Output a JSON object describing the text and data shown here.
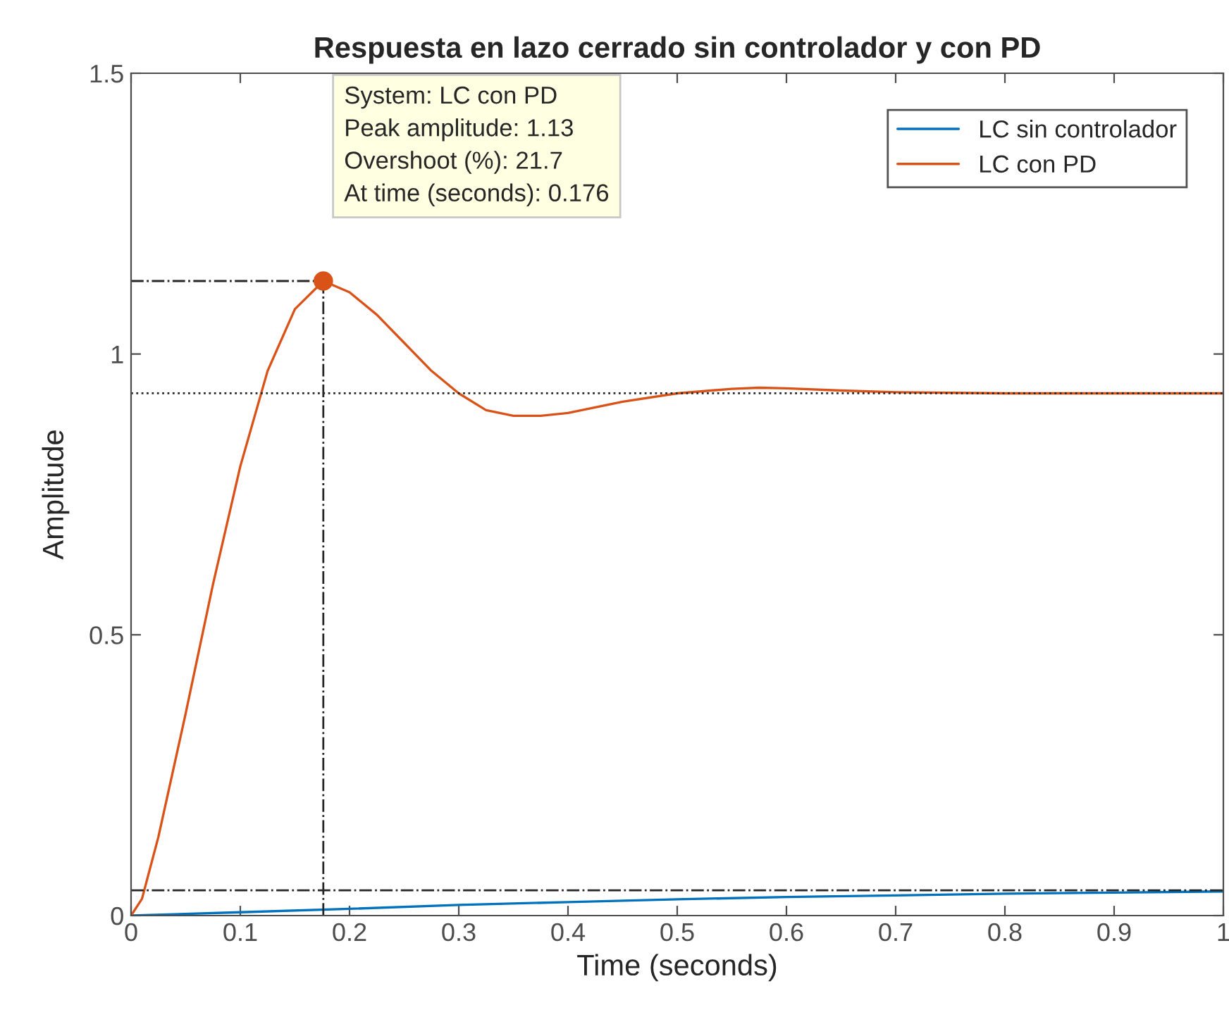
{
  "chart_data": {
    "type": "line",
    "title": "Respuesta en lazo cerrado sin controlador y con PD",
    "xlabel": "Time (seconds)",
    "ylabel": "Amplitude",
    "series": [
      {
        "name": "LC sin controlador",
        "color": "#0072bd",
        "x": [
          0,
          0.1,
          0.2,
          0.3,
          0.4,
          0.5,
          0.6,
          0.7,
          0.8,
          0.9,
          1
        ],
        "values": [
          0,
          0.006,
          0.012,
          0.019,
          0.024,
          0.029,
          0.033,
          0.036,
          0.039,
          0.041,
          0.043
        ]
      },
      {
        "name": "LC con PD",
        "color": "#d95319",
        "x": [
          0,
          0.01,
          0.025,
          0.05,
          0.075,
          0.1,
          0.125,
          0.15,
          0.176,
          0.2,
          0.225,
          0.25,
          0.275,
          0.3,
          0.325,
          0.35,
          0.375,
          0.4,
          0.45,
          0.5,
          0.55,
          0.575,
          0.6,
          0.65,
          0.7,
          0.8,
          0.9,
          1
        ],
        "values": [
          0,
          0.03,
          0.14,
          0.36,
          0.59,
          0.8,
          0.97,
          1.08,
          1.13,
          1.11,
          1.07,
          1.02,
          0.97,
          0.93,
          0.9,
          0.89,
          0.89,
          0.895,
          0.915,
          0.93,
          0.938,
          0.94,
          0.939,
          0.935,
          0.932,
          0.93,
          0.93,
          0.93
        ]
      },
      {
        "type": "line",
        "color": "#262626",
        "line_style": "dashdot",
        "x": [
          0,
          0.176
        ],
        "values": [
          1.13,
          1.13
        ]
      },
      {
        "type": "line",
        "color": "#262626",
        "line_style": "dashdot",
        "x": [
          0.176,
          0.176
        ],
        "values": [
          0,
          1.13
        ]
      },
      {
        "type": "scatter",
        "color": "#d95319",
        "marker": "circle",
        "x": [
          0.176
        ],
        "values": [
          1.13
        ]
      }
    ],
    "annotations": [
      "System: LC con PD\nPeak amplitude: 1.13\nOvershoot (%): 21.7\nAt time (seconds): 0.176"
    ],
    "ref_lines": [
      {
        "axis": "y",
        "value": 0.93,
        "line_style": "dotted",
        "color": "#262626"
      },
      {
        "axis": "y",
        "value": 0.045,
        "line_style": "dashdot",
        "color": "#262626"
      }
    ],
    "xlim": [
      0,
      1
    ],
    "ylim": [
      0,
      1.5
    ],
    "xticks": [
      0,
      0.1,
      0.2,
      0.3,
      0.4,
      0.5,
      0.6,
      0.7,
      0.8,
      0.9,
      1
    ],
    "yticks": [
      0,
      0.5,
      1,
      1.5
    ],
    "grid": false,
    "legend": "top right",
    "marker": "none",
    "line_style": "solid"
  }
}
